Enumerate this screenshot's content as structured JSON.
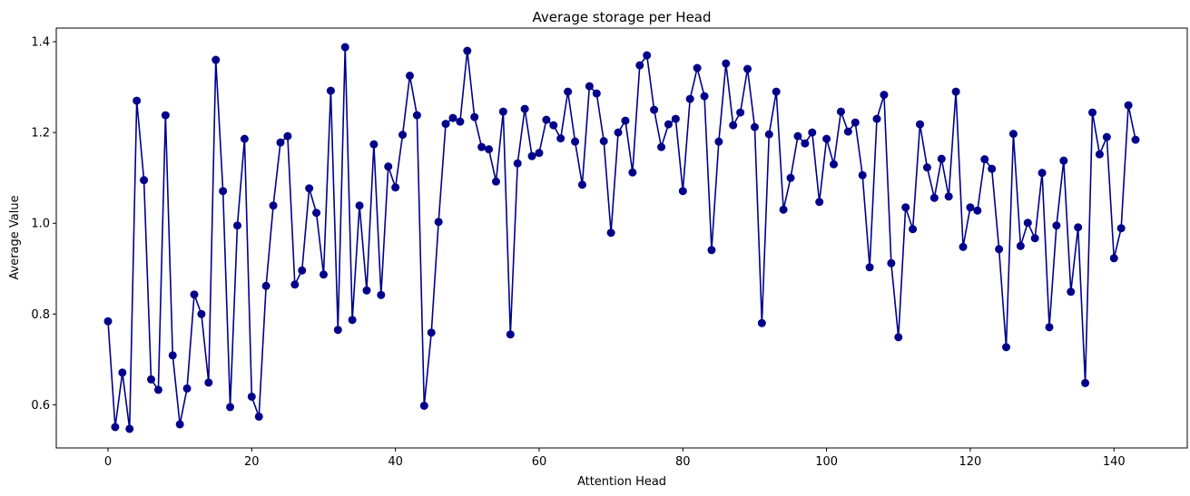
{
  "chart_data": {
    "type": "line",
    "title": "Average storage per Head",
    "xlabel": "Attention Head",
    "ylabel": "Average Value",
    "xlim": [
      -7.2,
      150.2
    ],
    "ylim": [
      0.505,
      1.43
    ],
    "xticks": [
      0,
      20,
      40,
      60,
      80,
      100,
      120,
      140
    ],
    "yticks": [
      0.6,
      0.8,
      1.0,
      1.2,
      1.4
    ],
    "xtick_labels": [
      "0",
      "20",
      "40",
      "60",
      "80",
      "100",
      "120",
      "140"
    ],
    "ytick_labels": [
      "0.6",
      "0.8",
      "1.0",
      "1.2",
      "1.4"
    ],
    "grid": false,
    "series": [
      {
        "name": "Average Value",
        "color": "#00008b",
        "marker": "o",
        "x": [
          0,
          1,
          2,
          3,
          4,
          5,
          6,
          7,
          8,
          9,
          10,
          11,
          12,
          13,
          14,
          15,
          16,
          17,
          18,
          19,
          20,
          21,
          22,
          23,
          24,
          25,
          26,
          27,
          28,
          29,
          30,
          31,
          32,
          33,
          34,
          35,
          36,
          37,
          38,
          39,
          40,
          41,
          42,
          43,
          44,
          45,
          46,
          47,
          48,
          49,
          50,
          51,
          52,
          53,
          54,
          55,
          56,
          57,
          58,
          59,
          60,
          61,
          62,
          63,
          64,
          65,
          66,
          67,
          68,
          69,
          70,
          71,
          72,
          73,
          74,
          75,
          76,
          77,
          78,
          79,
          80,
          81,
          82,
          83,
          84,
          85,
          86,
          87,
          88,
          89,
          90,
          91,
          92,
          93,
          94,
          95,
          96,
          97,
          98,
          99,
          100,
          101,
          102,
          103,
          104,
          105,
          106,
          107,
          108,
          109,
          110,
          111,
          112,
          113,
          114,
          115,
          116,
          117,
          118,
          119,
          120,
          121,
          122,
          123,
          124,
          125,
          126,
          127,
          128,
          129,
          130,
          131,
          132,
          133,
          134,
          135,
          136,
          137,
          138,
          139,
          140,
          141,
          142,
          143
        ],
        "values": [
          0.784,
          0.551,
          0.671,
          0.547,
          1.27,
          1.095,
          0.656,
          0.633,
          1.238,
          0.709,
          0.557,
          0.636,
          0.843,
          0.8,
          0.649,
          1.36,
          1.071,
          0.595,
          0.995,
          1.186,
          0.618,
          0.574,
          0.862,
          1.039,
          1.178,
          1.192,
          0.865,
          0.896,
          1.077,
          1.023,
          0.887,
          1.292,
          0.765,
          1.388,
          0.787,
          1.039,
          0.852,
          1.174,
          0.842,
          1.125,
          1.079,
          1.195,
          1.325,
          1.238,
          0.598,
          0.759,
          1.003,
          1.219,
          1.232,
          1.224,
          1.38,
          1.234,
          1.168,
          1.163,
          1.092,
          1.246,
          0.755,
          1.132,
          1.252,
          1.148,
          1.155,
          1.228,
          1.216,
          1.187,
          1.29,
          1.18,
          1.085,
          1.302,
          1.286,
          1.181,
          0.979,
          1.2,
          1.226,
          1.112,
          1.348,
          1.37,
          1.25,
          1.168,
          1.218,
          1.23,
          1.071,
          1.274,
          1.342,
          1.28,
          0.941,
          1.18,
          1.352,
          1.216,
          1.244,
          1.34,
          1.212,
          0.78,
          1.196,
          1.29,
          1.03,
          1.1,
          1.192,
          1.176,
          1.2,
          1.047,
          1.186,
          1.13,
          1.246,
          1.202,
          1.222,
          1.106,
          0.903,
          1.23,
          1.283,
          0.912,
          0.749,
          1.035,
          0.987,
          1.218,
          1.123,
          1.056,
          1.142,
          1.059,
          1.29,
          0.948,
          1.035,
          1.028,
          1.141,
          1.12,
          0.943,
          0.727,
          1.197,
          0.95,
          1.001,
          0.967,
          1.111,
          0.771,
          0.995,
          1.138,
          0.849,
          0.991,
          0.648,
          1.244,
          1.152,
          1.19,
          0.923,
          0.989,
          1.26,
          1.184
        ]
      }
    ]
  }
}
